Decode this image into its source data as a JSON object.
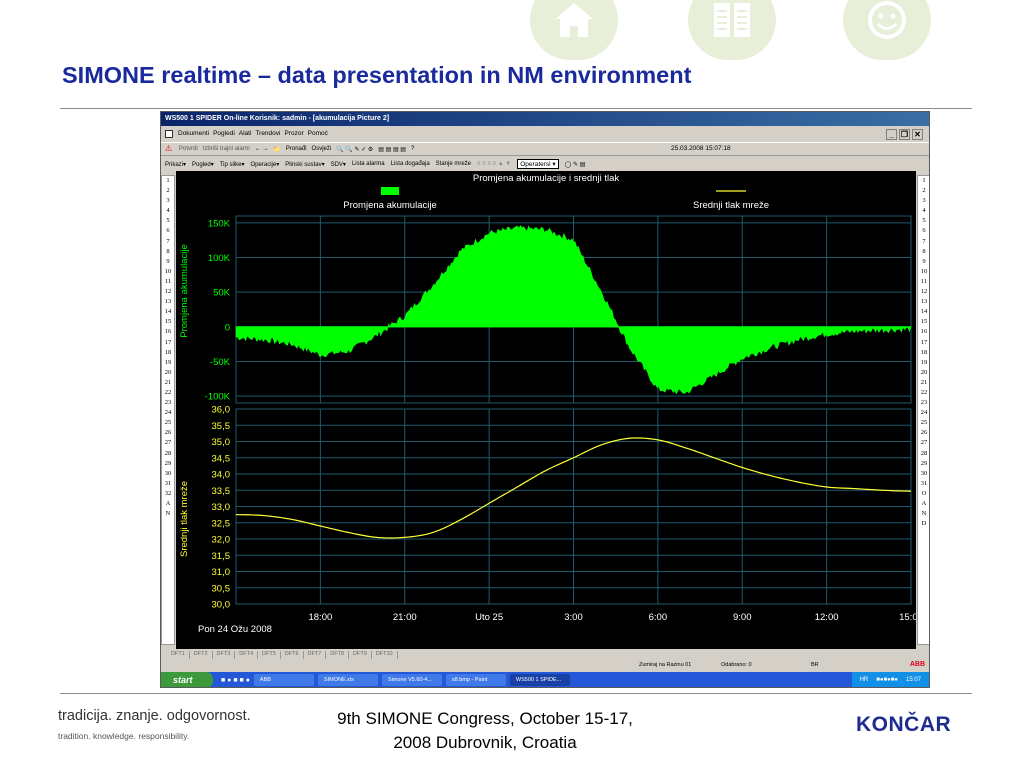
{
  "slide": {
    "title": "SIMONE realtime – data presentation in NM environment",
    "header_icons": [
      "home-icon",
      "book-icon",
      "smiley-icon"
    ],
    "tagline_main": "tradicija. znanje. odgovornost.",
    "tagline_sub": "tradition. knowledge. responsibility.",
    "congress_line1": "9th SIMONE Congress, October 15-17,",
    "congress_line2": "2008 Dubrovnik, Croatia",
    "logo": "KONČAR"
  },
  "window": {
    "title": "WS500 1 SPIDER On-line Korisnik: sadmin - [akumulacija  Picture 2]",
    "menu": [
      "Dokumenti",
      "Pogledi",
      "Alati",
      "Trendovi",
      "Prozor",
      "Pomoć"
    ],
    "toolbar1": {
      "potvrdi": "Potvrdi",
      "izbrisi": "Izbriši trajni alarm",
      "pronadi": "Pronađi",
      "osvjezi": "Osvježi",
      "datetime": "25.03.2008 15:07:18"
    },
    "toolbar2": [
      "Prikazi▾",
      "Pogled▾",
      "Tip slike▾",
      "Operacije▾",
      "Plinski sustav▾",
      "SDV▾",
      "Lista alarma",
      "Lista događaja",
      "Stanje mreže"
    ],
    "operater_select": "Operatersl ▾",
    "side_numbers_left": [
      "1",
      "2",
      "3",
      "4",
      "5",
      "6",
      "7",
      "8",
      "9",
      "10",
      "11",
      "12",
      "13",
      "14",
      "15",
      "16",
      "17",
      "18",
      "19",
      "20",
      "21",
      "22",
      "23",
      "24",
      "25",
      "26",
      "27",
      "28",
      "29",
      "30",
      "31",
      "32",
      "A",
      "N"
    ],
    "side_numbers_right": [
      "1",
      "2",
      "3",
      "4",
      "5",
      "6",
      "7",
      "8",
      "9",
      "10",
      "11",
      "12",
      "13",
      "14",
      "15",
      "16",
      "17",
      "18",
      "19",
      "20",
      "21",
      "22",
      "23",
      "24",
      "25",
      "26",
      "27",
      "28",
      "29",
      "30",
      "31",
      "O",
      "A",
      "N",
      "D"
    ],
    "tabs": [
      "DFT1",
      "DFT2",
      "DFT3",
      "DFT4",
      "DFT5",
      "DFT6",
      "DFT7",
      "DFT8",
      "DFT9",
      "DFT10"
    ],
    "status": {
      "zoom": "Zumiraj na Razinu 01",
      "odabrano": "Odabrano: 0",
      "lang": "BR",
      "brand": "ABB"
    }
  },
  "taskbar": {
    "start": "start",
    "items": [
      "ABB",
      "SIMONE.xls",
      "Simone V5.60-4...",
      "s8.bmp - Paint",
      "WS500 1 SPIDE..."
    ],
    "lang": "HR",
    "time": "15:07"
  },
  "colors": {
    "title_blue": "#1a2a9c",
    "accumulation_green": "#00ff00",
    "pressure_yellow": "#ffff33",
    "chart_bg": "#000000",
    "grid": "#1f5a6a"
  },
  "chart_data": [
    {
      "type": "area",
      "title": "Promjena akumulacije i srednji tlak",
      "legend": [
        "Promjena akumulacije",
        "Srednji tlak mreže"
      ],
      "ylabel": "Promjena akumulacije",
      "ylim": [
        -110000,
        160000
      ],
      "yticks": [
        150000,
        100000,
        50000,
        0,
        -50000,
        -100000
      ],
      "ytick_labels": [
        "150K",
        "100K",
        "50K",
        "0",
        "-50K",
        "-100K"
      ],
      "x_hours": [
        0,
        1,
        2,
        3,
        4,
        5,
        6,
        7,
        8,
        9,
        10,
        11,
        12,
        13,
        14,
        15,
        16,
        17,
        18,
        19,
        20,
        21,
        22,
        23,
        24
      ],
      "series": [
        {
          "name": "Promjena akumulacije",
          "values": [
            -15000,
            -18000,
            -25000,
            -40000,
            -35000,
            -12000,
            15000,
            60000,
            110000,
            135000,
            142000,
            140000,
            125000,
            50000,
            -30000,
            -90000,
            -95000,
            -70000,
            -45000,
            -30000,
            -18000,
            -10000,
            -6000,
            -4000,
            -3000
          ]
        }
      ]
    },
    {
      "type": "line",
      "ylabel": "Srednji tlak mreže",
      "ylim": [
        30.0,
        36.0
      ],
      "yticks": [
        36.0,
        35.5,
        35.0,
        34.5,
        34.0,
        33.5,
        33.0,
        32.5,
        32.0,
        31.5,
        31.0,
        30.5,
        30.0
      ],
      "ytick_labels": [
        "36,0",
        "35,5",
        "35,0",
        "34,5",
        "34,0",
        "33,5",
        "33,0",
        "32,5",
        "32,0",
        "31,5",
        "31,0",
        "30,5",
        "30,0"
      ],
      "x_hours": [
        0,
        1,
        2,
        3,
        4,
        5,
        6,
        7,
        8,
        9,
        10,
        11,
        12,
        13,
        14,
        15,
        16,
        17,
        18,
        19,
        20,
        21,
        22,
        23,
        24
      ],
      "x_tick_hours": [
        3,
        6,
        9,
        12,
        15,
        18,
        21,
        24
      ],
      "x_tick_labels": [
        "18:00",
        "21:00",
        "Uto 25",
        "3:00",
        "6:00",
        "9:00",
        "12:00",
        "15:00"
      ],
      "start_label": "Pon 24 Ožu 2008",
      "series": [
        {
          "name": "Srednji tlak mreže",
          "values": [
            32.75,
            32.72,
            32.6,
            32.4,
            32.2,
            32.05,
            32.05,
            32.2,
            32.6,
            33.1,
            33.6,
            34.1,
            34.5,
            34.9,
            35.1,
            35.05,
            34.8,
            34.5,
            34.2,
            33.95,
            33.75,
            33.6,
            33.55,
            33.5,
            33.47
          ]
        }
      ]
    }
  ]
}
